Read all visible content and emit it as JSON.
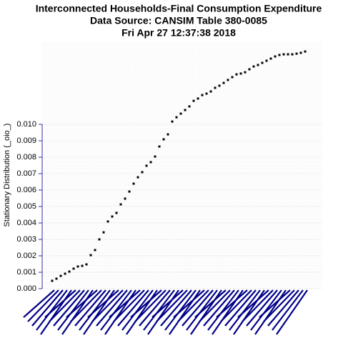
{
  "chart_data": {
    "type": "scatter",
    "title": [
      "Interconnected Households-Final Consumption Expenditure",
      "Data Source: CANSIM Table 380-0085",
      "Fri Apr 27 12:37:38 2018"
    ],
    "y_label": "Stationary Distribution (_oio_)",
    "categories": [
      null,
      null,
      null,
      null,
      null,
      null,
      null,
      null,
      null,
      null,
      null,
      null,
      null,
      null,
      null,
      null,
      null,
      null,
      null,
      null,
      null,
      null,
      null,
      null,
      null,
      null,
      null,
      null,
      null,
      null,
      null,
      null,
      null,
      null,
      null,
      null,
      null,
      null,
      null,
      null,
      null,
      null,
      null,
      null,
      null,
      null,
      null,
      null,
      null,
      null,
      null,
      null,
      null,
      null,
      null,
      null,
      null,
      null,
      null,
      null
    ],
    "values": [
      0.00048,
      0.00061,
      0.00078,
      0.00091,
      0.00104,
      0.00122,
      0.00135,
      0.00139,
      0.00148,
      0.00204,
      0.00235,
      0.003,
      0.00343,
      0.00409,
      0.00439,
      0.00461,
      0.00513,
      0.00548,
      0.00591,
      0.00639,
      0.00678,
      0.00709,
      0.00748,
      0.0077,
      0.00804,
      0.00865,
      0.00909,
      0.00939,
      0.01017,
      0.01043,
      0.01065,
      0.01087,
      0.01109,
      0.01143,
      0.01157,
      0.01178,
      0.01187,
      0.012,
      0.01222,
      0.01235,
      0.01252,
      0.0127,
      0.01287,
      0.01304,
      0.01309,
      0.01317,
      0.01335,
      0.01352,
      0.01361,
      0.01374,
      0.01387,
      0.014,
      0.01413,
      0.01422,
      0.01426,
      0.01426,
      0.01426,
      0.0143,
      0.01435,
      0.01443
    ],
    "color": "#000000",
    "ylim": [
      0,
      0.015
    ],
    "yticks": [
      {
        "value": 0,
        "label": "0.000"
      },
      {
        "value": 0.001,
        "label": "0.001"
      },
      {
        "value": 0.002,
        "label": "0.002"
      },
      {
        "value": 0.003,
        "label": "0.003"
      },
      {
        "value": 0.004,
        "label": "0.004"
      },
      {
        "value": 0.005,
        "label": "0.005"
      },
      {
        "value": 0.006,
        "label": "0.006"
      },
      {
        "value": 0.007,
        "label": "0.007"
      },
      {
        "value": 0.008,
        "label": "0.008"
      },
      {
        "value": 0.009,
        "label": "0.009"
      },
      {
        "value": 0.01,
        "label": "0.010"
      }
    ],
    "grid": true
  }
}
